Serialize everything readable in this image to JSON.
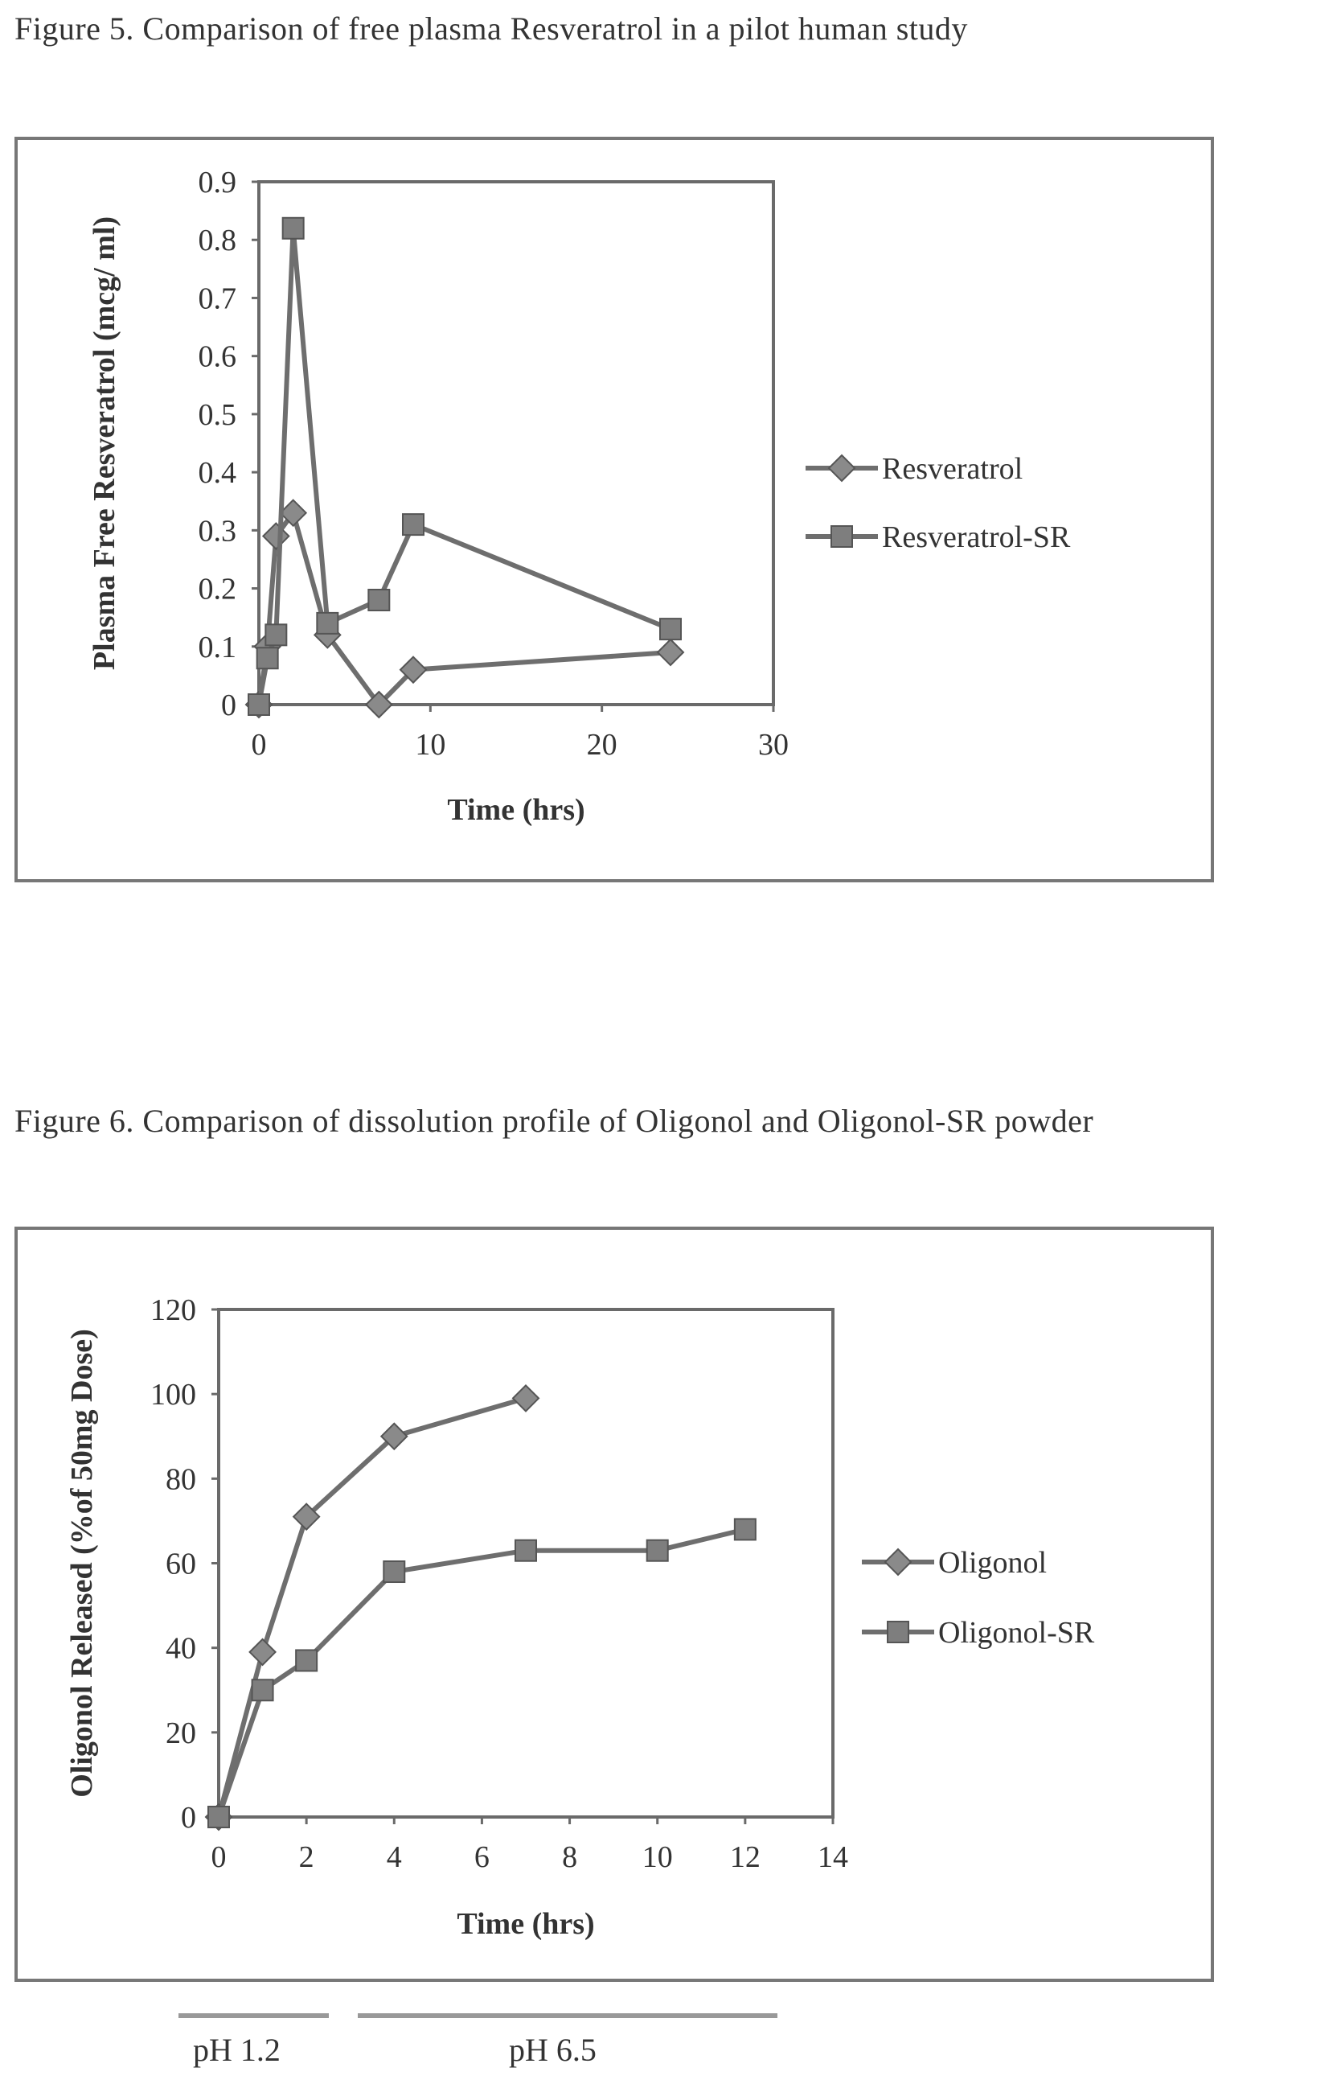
{
  "figure5": {
    "caption": "Figure 5.  Comparison of free plasma Resveratrol in a pilot human study"
  },
  "figure6": {
    "caption": "Figure 6. Comparison of dissolution profile of Oligonol and Oligonol-SR powder",
    "ph_labels": [
      "pH 1.2",
      "pH 6.5"
    ]
  },
  "colors": {
    "line": "#6e6e6e",
    "frame": "#777777",
    "text": "#333333"
  },
  "chart_data": [
    {
      "type": "line",
      "xlabel": "Time (hrs)",
      "ylabel": "Plasma Free Resveratrol (mcg/ ml)",
      "xlim": [
        0,
        30
      ],
      "ylim": [
        0,
        0.9
      ],
      "x_ticks": [
        "0",
        "10",
        "20",
        "30"
      ],
      "y_ticks": [
        "0",
        "0.1",
        "0.2",
        "0.3",
        "0.4",
        "0.5",
        "0.6",
        "0.7",
        "0.8",
        "0.9"
      ],
      "legend_position": "right",
      "series": [
        {
          "name": "Resveratrol",
          "marker": "diamond",
          "x": [
            0,
            0.5,
            1,
            2,
            4,
            7,
            9,
            24
          ],
          "y": [
            0,
            0.1,
            0.29,
            0.33,
            0.12,
            0,
            0.06,
            0.09
          ]
        },
        {
          "name": "Resveratrol-SR",
          "marker": "square",
          "x": [
            0,
            0.5,
            1,
            2,
            4,
            7,
            9,
            24
          ],
          "y": [
            0,
            0.08,
            0.12,
            0.82,
            0.14,
            0.18,
            0.31,
            0.13
          ]
        }
      ]
    },
    {
      "type": "line",
      "xlabel": "Time (hrs)",
      "ylabel": "Oligonol Released (%of 50mg Dose)",
      "xlim": [
        0,
        14
      ],
      "ylim": [
        0,
        120
      ],
      "x_ticks": [
        "0",
        "2",
        "4",
        "6",
        "8",
        "10",
        "12",
        "14"
      ],
      "y_ticks": [
        "0",
        "20",
        "40",
        "60",
        "80",
        "100",
        "120"
      ],
      "legend_position": "right",
      "series": [
        {
          "name": "Oligonol",
          "marker": "diamond",
          "x": [
            0,
            1,
            2,
            4,
            7
          ],
          "y": [
            0,
            39,
            71,
            90,
            99
          ]
        },
        {
          "name": "Oligonol-SR",
          "marker": "square",
          "x": [
            0,
            1,
            2,
            4,
            7,
            10,
            12
          ],
          "y": [
            0,
            30,
            37,
            58,
            63,
            63,
            68
          ]
        }
      ]
    }
  ]
}
